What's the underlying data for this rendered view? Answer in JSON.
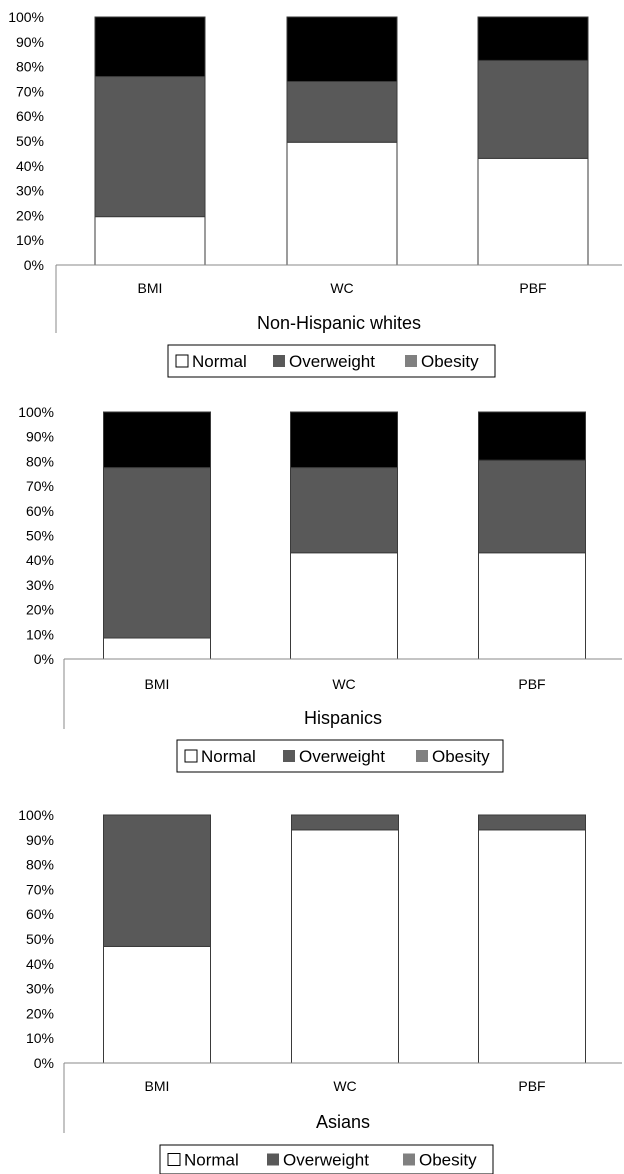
{
  "colors": {
    "normal": "#ffffff",
    "overweight": "#595959",
    "obesity": "#000000",
    "axis": "#888888",
    "outline": "#3a3a3a"
  },
  "chart_data": [
    {
      "type": "bar",
      "stacked": true,
      "title": "Non-Hispanic whites",
      "categories": [
        "BMI",
        "WC",
        "PBF"
      ],
      "y_tick_labels": [
        "0%",
        "10%",
        "20%",
        "30%",
        "40%",
        "50%",
        "60%",
        "70%",
        "80%",
        "90%",
        "100%"
      ],
      "ylim": [
        0,
        100
      ],
      "legend": {
        "position": "bottom",
        "entries": [
          "Normal",
          "Overweight",
          "Obesity"
        ]
      },
      "series": [
        {
          "name": "Normal",
          "values": [
            19.5,
            49.5,
            43
          ]
        },
        {
          "name": "Overweight",
          "values": [
            56.5,
            24.5,
            39.5
          ]
        },
        {
          "name": "Obesity",
          "values": [
            24,
            26,
            17.5
          ]
        }
      ]
    },
    {
      "type": "bar",
      "stacked": true,
      "title": "Hispanics",
      "categories": [
        "BMI",
        "WC",
        "PBF"
      ],
      "y_tick_labels": [
        "0%",
        "10%",
        "20%",
        "30%",
        "40%",
        "50%",
        "60%",
        "70%",
        "80%",
        "90%",
        "100%"
      ],
      "ylim": [
        0,
        100
      ],
      "legend": {
        "position": "bottom",
        "entries": [
          "Normal",
          "Overweight",
          "Obesity"
        ]
      },
      "series": [
        {
          "name": "Normal",
          "values": [
            8.5,
            43,
            43
          ]
        },
        {
          "name": "Overweight",
          "values": [
            69,
            34.5,
            37.5
          ]
        },
        {
          "name": "Obesity",
          "values": [
            22.5,
            22.5,
            19.5
          ]
        }
      ]
    },
    {
      "type": "bar",
      "stacked": true,
      "title": "Asians",
      "categories": [
        "BMI",
        "WC",
        "PBF"
      ],
      "y_tick_labels": [
        "0%",
        "10%",
        "20%",
        "30%",
        "40%",
        "50%",
        "60%",
        "70%",
        "80%",
        "90%",
        "100%"
      ],
      "ylim": [
        0,
        100
      ],
      "legend": {
        "position": "bottom",
        "entries": [
          "Normal",
          "Overweight",
          "Obesity"
        ]
      },
      "series": [
        {
          "name": "Normal",
          "values": [
            47,
            94,
            94
          ]
        },
        {
          "name": "Overweight",
          "values": [
            53,
            6,
            6
          ]
        },
        {
          "name": "Obesity",
          "values": [
            0,
            0,
            0
          ]
        }
      ]
    }
  ]
}
